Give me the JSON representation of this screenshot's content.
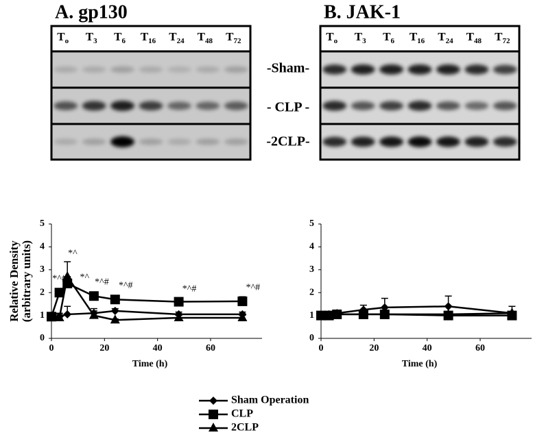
{
  "blots": [
    {
      "title": "A. gp130",
      "lane_prefix": "T",
      "lanes": [
        "o",
        "3",
        "6",
        "16",
        "24",
        "48",
        "72"
      ]
    },
    {
      "title": "B. JAK-1",
      "lane_prefix": "T",
      "lanes": [
        "o",
        "3",
        "6",
        "16",
        "24",
        "48",
        "72"
      ]
    }
  ],
  "row_labels": [
    "-Sham-",
    "- CLP -",
    "-2CLP-"
  ],
  "chart_data": [
    {
      "type": "line",
      "ylabel": [
        "Relative Density",
        "(arbitrary units)"
      ],
      "xlabel": "Time (h)",
      "x": [
        0,
        3,
        6,
        16,
        24,
        48,
        72
      ],
      "xlim": [
        0,
        75
      ],
      "xticks": [
        0,
        20,
        40,
        60
      ],
      "ylim": [
        0,
        5
      ],
      "yticks": [
        0,
        1,
        2,
        3,
        4,
        5
      ],
      "series": [
        {
          "name": "Sham Operation",
          "marker": "diamond",
          "color": "#000000",
          "values": [
            1,
            0.95,
            1.05,
            1.1,
            1.2,
            1.05,
            1.05
          ],
          "errors": [
            0.05,
            0.1,
            0.35,
            0.2,
            0.1,
            0.1,
            0.1
          ]
        },
        {
          "name": "CLP",
          "marker": "square",
          "color": "#000000",
          "values": [
            0.95,
            2.0,
            2.4,
            1.85,
            1.7,
            1.6,
            1.62
          ],
          "errors": [
            0.05,
            0.1,
            0.3,
            0.1,
            0.1,
            0.1,
            0.2
          ]
        },
        {
          "name": "2CLP",
          "marker": "triangle",
          "color": "#000000",
          "values": [
            0.95,
            0.9,
            2.7,
            1.0,
            0.8,
            0.9,
            0.9
          ],
          "errors": [
            0.05,
            0.2,
            0.65,
            0.2,
            0.05,
            0.1,
            0.1
          ]
        }
      ],
      "annotations": [
        {
          "text": "*^#",
          "x": 3,
          "y": 2.6
        },
        {
          "text": "*^",
          "x": 8,
          "y": 3.7
        },
        {
          "text": "*^",
          "x": 12.5,
          "y": 2.65
        },
        {
          "text": "*^#",
          "x": 19,
          "y": 2.45
        },
        {
          "text": "*^#",
          "x": 28,
          "y": 2.3
        },
        {
          "text": "*^#",
          "x": 52,
          "y": 2.15
        },
        {
          "text": "*^#",
          "x": 76,
          "y": 2.2
        }
      ]
    },
    {
      "type": "line",
      "xlabel": "Time (h)",
      "x": [
        0,
        3,
        6,
        16,
        24,
        48,
        72
      ],
      "xlim": [
        0,
        75
      ],
      "xticks": [
        0,
        20,
        40,
        60
      ],
      "ylim": [
        0,
        5
      ],
      "yticks": [
        0,
        1,
        2,
        3,
        4,
        5
      ],
      "series": [
        {
          "marker": "diamond",
          "color": "#000000",
          "values": [
            1,
            1.05,
            1.1,
            1.25,
            1.35,
            1.4,
            1.1
          ],
          "errors": [
            0.05,
            0.05,
            0.1,
            0.2,
            0.4,
            0.45,
            0.3
          ]
        },
        {
          "marker": "square",
          "color": "#000000",
          "values": [
            1,
            1,
            1.05,
            1.05,
            1.05,
            1.0,
            1.0
          ],
          "errors": [
            0.05,
            0.05,
            0.05,
            0.05,
            0.05,
            0.05,
            0.05
          ]
        },
        {
          "marker": "triangle",
          "color": "#000000",
          "values": [
            1,
            1,
            1.05,
            1.05,
            1.05,
            1.05,
            1.1
          ],
          "errors": [
            0.05,
            0.05,
            0.05,
            0.05,
            0.05,
            0.05,
            0.05
          ]
        }
      ]
    }
  ]
}
